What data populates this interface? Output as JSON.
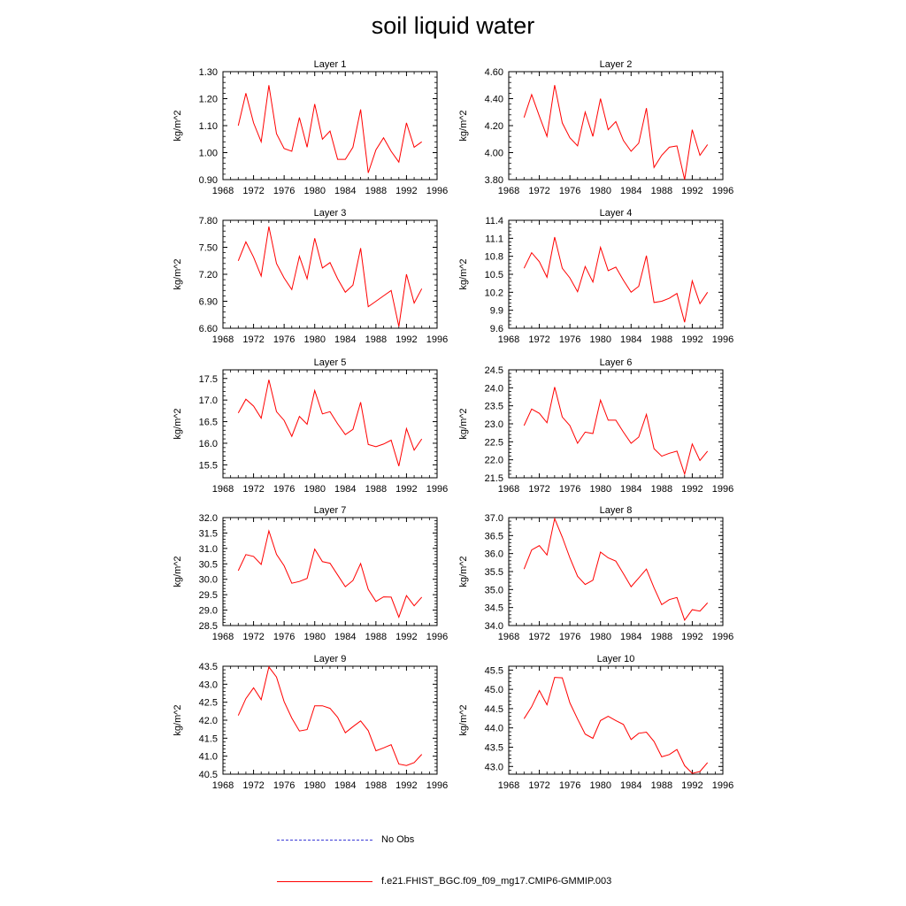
{
  "title": "soil liquid water",
  "legend": {
    "obs_label": "No Obs",
    "obs_color": "#3b3bd6",
    "model_label": "f.e21.FHIST_BGC.f09_f09_mg17.CMIP6-GMMIP.003",
    "model_color": "#ff0000"
  },
  "chart_data": [
    {
      "type": "line",
      "title": "Layer 1",
      "xlabel": "",
      "ylabel": "kg/m^2",
      "xlim": [
        1968,
        1996
      ],
      "xticks": [
        "1968",
        "1972",
        "1976",
        "1980",
        "1984",
        "1988",
        "1992",
        "1996"
      ],
      "ylim": [
        0.9,
        1.3
      ],
      "yticks": [
        "0.90",
        "1.00",
        "1.10",
        "1.20",
        "1.30"
      ],
      "x": [
        1970,
        1971,
        1972,
        1973,
        1974,
        1975,
        1976,
        1977,
        1978,
        1979,
        1980,
        1981,
        1982,
        1983,
        1984,
        1985,
        1986,
        1987,
        1988,
        1989,
        1990,
        1991,
        1992,
        1993,
        1994
      ],
      "series": [
        {
          "name": "f.e21.FHIST_BGC.f09_f09_mg17.CMIP6-GMMIP.003",
          "values": [
            1.1,
            1.22,
            1.11,
            1.04,
            1.25,
            1.07,
            1.015,
            1.005,
            1.13,
            1.02,
            1.18,
            1.05,
            1.08,
            0.975,
            0.975,
            1.02,
            1.16,
            0.925,
            1.01,
            1.055,
            1.005,
            0.965,
            1.11,
            1.02,
            1.04
          ]
        }
      ]
    },
    {
      "type": "line",
      "title": "Layer 2",
      "xlabel": "",
      "ylabel": "kg/m^2",
      "xlim": [
        1968,
        1996
      ],
      "xticks": [
        "1968",
        "1972",
        "1976",
        "1980",
        "1984",
        "1988",
        "1992",
        "1996"
      ],
      "ylim": [
        3.8,
        4.6
      ],
      "yticks": [
        "3.80",
        "4.00",
        "4.20",
        "4.40",
        "4.60"
      ],
      "x": [
        1970,
        1971,
        1972,
        1973,
        1974,
        1975,
        1976,
        1977,
        1978,
        1979,
        1980,
        1981,
        1982,
        1983,
        1984,
        1985,
        1986,
        1987,
        1988,
        1989,
        1990,
        1991,
        1992,
        1993,
        1994
      ],
      "series": [
        {
          "name": "f.e21.FHIST_BGC.f09_f09_mg17.CMIP6-GMMIP.003",
          "values": [
            4.26,
            4.43,
            4.27,
            4.12,
            4.5,
            4.22,
            4.11,
            4.05,
            4.3,
            4.12,
            4.4,
            4.17,
            4.23,
            4.09,
            4.01,
            4.07,
            4.33,
            3.89,
            3.98,
            4.04,
            4.05,
            3.8,
            4.17,
            3.98,
            4.06
          ]
        }
      ]
    },
    {
      "type": "line",
      "title": "Layer 3",
      "xlabel": "",
      "ylabel": "kg/m^2",
      "xlim": [
        1968,
        1996
      ],
      "xticks": [
        "1968",
        "1972",
        "1976",
        "1980",
        "1984",
        "1988",
        "1992",
        "1996"
      ],
      "ylim": [
        6.6,
        7.8
      ],
      "yticks": [
        "6.60",
        "6.90",
        "7.20",
        "7.50",
        "7.80"
      ],
      "x": [
        1970,
        1971,
        1972,
        1973,
        1974,
        1975,
        1976,
        1977,
        1978,
        1979,
        1980,
        1981,
        1982,
        1983,
        1984,
        1985,
        1986,
        1987,
        1988,
        1989,
        1990,
        1991,
        1992,
        1993,
        1994
      ],
      "series": [
        {
          "name": "f.e21.FHIST_BGC.f09_f09_mg17.CMIP6-GMMIP.003",
          "values": [
            7.35,
            7.56,
            7.39,
            7.18,
            7.73,
            7.32,
            7.16,
            7.03,
            7.4,
            7.15,
            7.6,
            7.27,
            7.33,
            7.15,
            7.0,
            7.08,
            7.49,
            6.84,
            6.9,
            6.96,
            7.02,
            6.62,
            7.2,
            6.88,
            7.04
          ]
        }
      ]
    },
    {
      "type": "line",
      "title": "Layer 4",
      "xlabel": "",
      "ylabel": "kg/m^2",
      "xlim": [
        1968,
        1996
      ],
      "xticks": [
        "1968",
        "1972",
        "1976",
        "1980",
        "1984",
        "1988",
        "1992",
        "1996"
      ],
      "ylim": [
        9.6,
        11.4
      ],
      "yticks": [
        "9.6",
        "9.9",
        "10.2",
        "10.5",
        "10.8",
        "11.1",
        "11.4"
      ],
      "x": [
        1970,
        1971,
        1972,
        1973,
        1974,
        1975,
        1976,
        1977,
        1978,
        1979,
        1980,
        1981,
        1982,
        1983,
        1984,
        1985,
        1986,
        1987,
        1988,
        1989,
        1990,
        1991,
        1992,
        1993,
        1994
      ],
      "series": [
        {
          "name": "f.e21.FHIST_BGC.f09_f09_mg17.CMIP6-GMMIP.003",
          "values": [
            10.6,
            10.86,
            10.71,
            10.45,
            11.12,
            10.6,
            10.44,
            10.21,
            10.63,
            10.37,
            10.95,
            10.56,
            10.62,
            10.4,
            10.2,
            10.3,
            10.81,
            10.03,
            10.05,
            10.1,
            10.18,
            9.7,
            10.39,
            10.01,
            10.2
          ]
        }
      ]
    },
    {
      "type": "line",
      "title": "Layer 5",
      "xlabel": "",
      "ylabel": "kg/m^2",
      "xlim": [
        1968,
        1996
      ],
      "xticks": [
        "1968",
        "1972",
        "1976",
        "1980",
        "1984",
        "1988",
        "1992",
        "1996"
      ],
      "ylim": [
        15.2,
        17.7
      ],
      "yticks": [
        "15.5",
        "16.0",
        "16.5",
        "17.0",
        "17.5"
      ],
      "x": [
        1970,
        1971,
        1972,
        1973,
        1974,
        1975,
        1976,
        1977,
        1978,
        1979,
        1980,
        1981,
        1982,
        1983,
        1984,
        1985,
        1986,
        1987,
        1988,
        1989,
        1990,
        1991,
        1992,
        1993,
        1994
      ],
      "series": [
        {
          "name": "f.e21.FHIST_BGC.f09_f09_mg17.CMIP6-GMMIP.003",
          "values": [
            16.7,
            17.02,
            16.86,
            16.58,
            17.47,
            16.73,
            16.53,
            16.16,
            16.62,
            16.44,
            17.22,
            16.68,
            16.73,
            16.45,
            16.2,
            16.32,
            16.95,
            15.97,
            15.92,
            15.98,
            16.07,
            15.47,
            16.34,
            15.84,
            16.1
          ]
        }
      ]
    },
    {
      "type": "line",
      "title": "Layer 6",
      "xlabel": "",
      "ylabel": "kg/m^2",
      "xlim": [
        1968,
        1996
      ],
      "xticks": [
        "1968",
        "1972",
        "1976",
        "1980",
        "1984",
        "1988",
        "1992",
        "1996"
      ],
      "ylim": [
        21.5,
        24.5
      ],
      "yticks": [
        "21.5",
        "22.0",
        "22.5",
        "23.0",
        "23.5",
        "24.0",
        "24.5"
      ],
      "x": [
        1970,
        1971,
        1972,
        1973,
        1974,
        1975,
        1976,
        1977,
        1978,
        1979,
        1980,
        1981,
        1982,
        1983,
        1984,
        1985,
        1986,
        1987,
        1988,
        1989,
        1990,
        1991,
        1992,
        1993,
        1994
      ],
      "series": [
        {
          "name": "f.e21.FHIST_BGC.f09_f09_mg17.CMIP6-GMMIP.003",
          "values": [
            22.95,
            23.41,
            23.29,
            23.03,
            24.02,
            23.19,
            22.95,
            22.46,
            22.77,
            22.73,
            23.66,
            23.1,
            23.1,
            22.77,
            22.46,
            22.63,
            23.26,
            22.31,
            22.1,
            22.18,
            22.24,
            21.6,
            22.44,
            21.98,
            22.24
          ]
        }
      ]
    },
    {
      "type": "line",
      "title": "Layer 7",
      "xlabel": "",
      "ylabel": "kg/m^2",
      "xlim": [
        1968,
        1996
      ],
      "xticks": [
        "1968",
        "1972",
        "1976",
        "1980",
        "1984",
        "1988",
        "1992",
        "1996"
      ],
      "ylim": [
        28.5,
        32.0
      ],
      "yticks": [
        "28.5",
        "29.0",
        "29.5",
        "30.0",
        "30.5",
        "31.0",
        "31.5",
        "32.0"
      ],
      "x": [
        1970,
        1971,
        1972,
        1973,
        1974,
        1975,
        1976,
        1977,
        1978,
        1979,
        1980,
        1981,
        1982,
        1983,
        1984,
        1985,
        1986,
        1987,
        1988,
        1989,
        1990,
        1991,
        1992,
        1993,
        1994
      ],
      "series": [
        {
          "name": "f.e21.FHIST_BGC.f09_f09_mg17.CMIP6-GMMIP.003",
          "values": [
            30.28,
            30.8,
            30.74,
            30.48,
            31.57,
            30.81,
            30.44,
            29.87,
            29.93,
            30.03,
            30.98,
            30.57,
            30.52,
            30.14,
            29.76,
            29.96,
            30.51,
            29.67,
            29.28,
            29.43,
            29.42,
            28.77,
            29.47,
            29.14,
            29.42
          ]
        }
      ]
    },
    {
      "type": "line",
      "title": "Layer 8",
      "xlabel": "",
      "ylabel": "kg/m^2",
      "xlim": [
        1968,
        1996
      ],
      "xticks": [
        "1968",
        "1972",
        "1976",
        "1980",
        "1984",
        "1988",
        "1992",
        "1996"
      ],
      "ylim": [
        34.0,
        37.0
      ],
      "yticks": [
        "34.0",
        "34.5",
        "35.0",
        "35.5",
        "36.0",
        "36.5",
        "37.0"
      ],
      "x": [
        1970,
        1971,
        1972,
        1973,
        1974,
        1975,
        1976,
        1977,
        1978,
        1979,
        1980,
        1981,
        1982,
        1983,
        1984,
        1985,
        1986,
        1987,
        1988,
        1989,
        1990,
        1991,
        1992,
        1993,
        1994
      ],
      "series": [
        {
          "name": "f.e21.FHIST_BGC.f09_f09_mg17.CMIP6-GMMIP.003",
          "values": [
            35.57,
            36.1,
            36.22,
            35.96,
            36.97,
            36.46,
            35.88,
            35.37,
            35.14,
            35.26,
            36.04,
            35.88,
            35.79,
            35.44,
            35.08,
            35.32,
            35.57,
            35.05,
            34.58,
            34.72,
            34.78,
            34.15,
            34.44,
            34.4,
            34.63
          ]
        }
      ]
    },
    {
      "type": "line",
      "title": "Layer 9",
      "xlabel": "",
      "ylabel": "kg/m^2",
      "xlim": [
        1968,
        1996
      ],
      "xticks": [
        "1968",
        "1972",
        "1976",
        "1980",
        "1984",
        "1988",
        "1992",
        "1996"
      ],
      "ylim": [
        40.5,
        43.5
      ],
      "yticks": [
        "40.5",
        "41.0",
        "41.5",
        "42.0",
        "42.5",
        "43.0",
        "43.5"
      ],
      "x": [
        1970,
        1971,
        1972,
        1973,
        1974,
        1975,
        1976,
        1977,
        1978,
        1979,
        1980,
        1981,
        1982,
        1983,
        1984,
        1985,
        1986,
        1987,
        1988,
        1989,
        1990,
        1991,
        1992,
        1993,
        1994
      ],
      "series": [
        {
          "name": "f.e21.FHIST_BGC.f09_f09_mg17.CMIP6-GMMIP.003",
          "values": [
            42.13,
            42.6,
            42.9,
            42.57,
            43.48,
            43.2,
            42.52,
            42.06,
            41.7,
            41.74,
            42.4,
            42.4,
            42.33,
            42.08,
            41.65,
            41.82,
            41.98,
            41.71,
            41.15,
            41.23,
            41.32,
            40.78,
            40.74,
            40.82,
            41.05
          ]
        }
      ]
    },
    {
      "type": "line",
      "title": "Layer 10",
      "xlabel": "",
      "ylabel": "kg/m^2",
      "xlim": [
        1968,
        1996
      ],
      "xticks": [
        "1968",
        "1972",
        "1976",
        "1980",
        "1984",
        "1988",
        "1992",
        "1996"
      ],
      "ylim": [
        42.8,
        45.6
      ],
      "yticks": [
        "43.0",
        "43.5",
        "44.0",
        "44.5",
        "45.0",
        "45.5"
      ],
      "x": [
        1970,
        1971,
        1972,
        1973,
        1974,
        1975,
        1976,
        1977,
        1978,
        1979,
        1980,
        1981,
        1982,
        1983,
        1984,
        1985,
        1986,
        1987,
        1988,
        1989,
        1990,
        1991,
        1992,
        1993,
        1994
      ],
      "series": [
        {
          "name": "f.e21.FHIST_BGC.f09_f09_mg17.CMIP6-GMMIP.003",
          "values": [
            44.24,
            44.55,
            44.97,
            44.6,
            45.31,
            45.3,
            44.65,
            44.23,
            43.84,
            43.73,
            44.19,
            44.3,
            44.19,
            44.09,
            43.7,
            43.86,
            43.89,
            43.65,
            43.25,
            43.31,
            43.44,
            43.02,
            42.82,
            42.87,
            43.1
          ]
        }
      ]
    }
  ]
}
